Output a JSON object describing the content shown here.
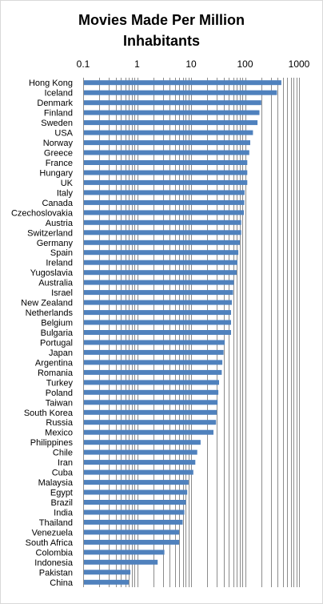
{
  "chart_data": {
    "type": "bar",
    "orientation": "horizontal",
    "title_line1": "Movies Made  Per Million",
    "title_line2": "Inhabitants",
    "x_scale": "log",
    "xlim": [
      0.1,
      1000
    ],
    "x_ticks": [
      {
        "value": 0.1,
        "label": "0.1"
      },
      {
        "value": 1,
        "label": "1"
      },
      {
        "value": 10,
        "label": "10"
      },
      {
        "value": 100,
        "label": "100"
      },
      {
        "value": 1000,
        "label": "1000"
      }
    ],
    "grid": "vertical, minor log gridlines",
    "bar_color": "#4f81bd",
    "categories": [
      "Hong Kong",
      "Iceland",
      "Denmark",
      "Finland",
      "Sweden",
      "USA",
      "Norway",
      "Greece",
      "France",
      "Hungary",
      "UK",
      "Italy",
      "Canada",
      "Czechoslovakia",
      "Austria",
      "Switzerland",
      "Germany",
      "Spain",
      "Ireland",
      "Yugoslavia",
      "Australia",
      "Israel",
      "New Zealand",
      "Netherlands",
      "Belgium",
      "Bulgaria",
      "Portugal",
      "Japan",
      "Argentina",
      "Romania",
      "Turkey",
      "Poland",
      "Taiwan",
      "South Korea",
      "Russia",
      "Mexico",
      "Philippines",
      "Chile",
      "Iran",
      "Cuba",
      "Malaysia",
      "Egypt",
      "Brazil",
      "India",
      "Thailand",
      "Venezuela",
      "South Africa",
      "Colombia",
      "Indonesia",
      "Pakistan",
      "China"
    ],
    "values": [
      470,
      390,
      200,
      185,
      170,
      140,
      125,
      120,
      110,
      110,
      110,
      98,
      97,
      95,
      85,
      85,
      80,
      75,
      72,
      70,
      62,
      60,
      57,
      55,
      55,
      55,
      42,
      40,
      38,
      37,
      33,
      32,
      31,
      30,
      29,
      26,
      15,
      13,
      12,
      11,
      9,
      8.5,
      8,
      7.5,
      7,
      6,
      6,
      3.2,
      2.4,
      0.75,
      0.7
    ]
  }
}
